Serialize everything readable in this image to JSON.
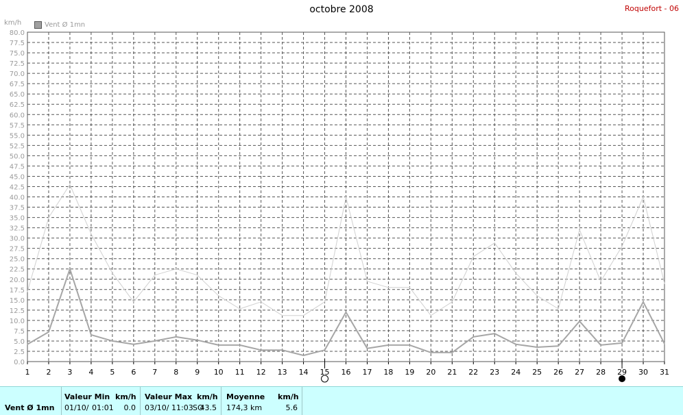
{
  "header": {
    "title": "octobre 2008",
    "station": "Roquefort - 06",
    "unit": "km/h",
    "legend_label": "Vent Ø 1mn"
  },
  "markers": {
    "full_moon_day": 15,
    "new_moon_day": 29
  },
  "colors": {
    "avg_line": "#a6a6a6",
    "max_line": "#d0d0d0",
    "grid": "#555555",
    "background_panel": "#ccffff",
    "station": "#c00000"
  },
  "chart_data": {
    "type": "line",
    "title": "octobre 2008",
    "ylabel": "km/h",
    "x": [
      1,
      2,
      3,
      4,
      5,
      6,
      7,
      8,
      9,
      10,
      11,
      12,
      13,
      14,
      15,
      16,
      17,
      18,
      19,
      20,
      21,
      22,
      23,
      24,
      25,
      26,
      27,
      28,
      29,
      30,
      31
    ],
    "ylim": [
      0,
      80
    ],
    "ytick_step": 2.5,
    "grid": true,
    "series": [
      {
        "name": "Vent Ø 1mn",
        "values": [
          4.2,
          7.2,
          22.5,
          6.5,
          5.0,
          4.2,
          5.0,
          6.0,
          5.2,
          4.0,
          4.0,
          2.8,
          2.8,
          1.5,
          2.8,
          12.0,
          3.2,
          4.0,
          4.0,
          2.2,
          2.2,
          6.0,
          6.8,
          4.2,
          3.5,
          3.8,
          9.8,
          4.0,
          4.5,
          14.5,
          4.3
        ]
      },
      {
        "values": [
          17.0,
          35.0,
          43.0,
          31.0,
          21.5,
          14.5,
          21.0,
          22.5,
          21.0,
          16.0,
          12.8,
          14.5,
          11.2,
          11.2,
          14.5,
          40.0,
          19.5,
          18.0,
          18.0,
          11.2,
          14.5,
          25.5,
          28.8,
          21.5,
          16.0,
          12.8,
          32.0,
          19.5,
          28.0,
          40.0,
          19.0
        ]
      }
    ]
  },
  "summary": {
    "label": "Vent Ø 1mn",
    "min": {
      "header": "Valeur Min",
      "unit": "km/h",
      "date": "01/10/",
      "time": "01:01",
      "value": "0.0"
    },
    "max": {
      "header": "Valeur Max",
      "unit": "km/h",
      "date": "03/10/",
      "time": "11:03",
      "dir": "SO",
      "value": "43.5"
    },
    "avg": {
      "header": "Moyenne",
      "unit": "km/h",
      "distance": "174,3 km",
      "value": "5.6"
    }
  }
}
